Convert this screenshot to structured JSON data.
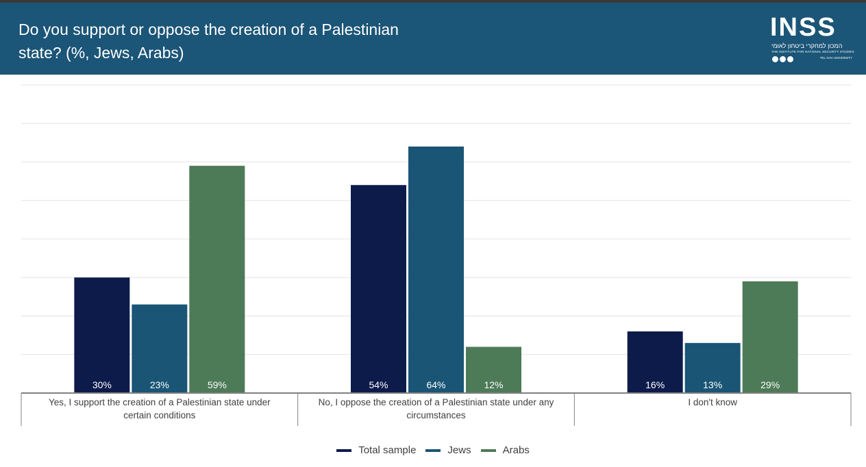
{
  "header": {
    "title": "Do you support or oppose the creation of a Palestinian state? (%, Jews, Arabs)",
    "logo": {
      "name": "INSS",
      "subtitle_hebrew": "המכון למחקרי ביטחון לאומי",
      "subtitle_english": "THE INSTITUTE FOR NATIONAL SECURITY STUDIES",
      "university": "TEL AVIV UNIVERSITY"
    }
  },
  "colors": {
    "header_bg": "#1b5577",
    "total_sample": "#0d1b4b",
    "jews": "#1a5576",
    "arabs": "#4d7a57"
  },
  "chart_data": {
    "type": "bar",
    "title": "Do you support or oppose the creation of a Palestinian state? (%, Jews, Arabs)",
    "categories": [
      "Yes, I support the creation of a Palestinian state under certain conditions",
      "No, I oppose the creation of a Palestinian state under any circumstances",
      "I don't know"
    ],
    "series": [
      {
        "name": "Total sample",
        "values": [
          30,
          54,
          16
        ],
        "color": "#0d1b4b"
      },
      {
        "name": "Jews",
        "values": [
          23,
          64,
          13
        ],
        "color": "#1a5576"
      },
      {
        "name": "Arabs",
        "values": [
          59,
          12,
          29
        ],
        "color": "#4d7a57"
      }
    ],
    "ylim": [
      0,
      80
    ],
    "grid": true,
    "y_axis_labels_shown": false,
    "data_labels": "inside bar bottom, percent",
    "legend_position": "bottom"
  }
}
